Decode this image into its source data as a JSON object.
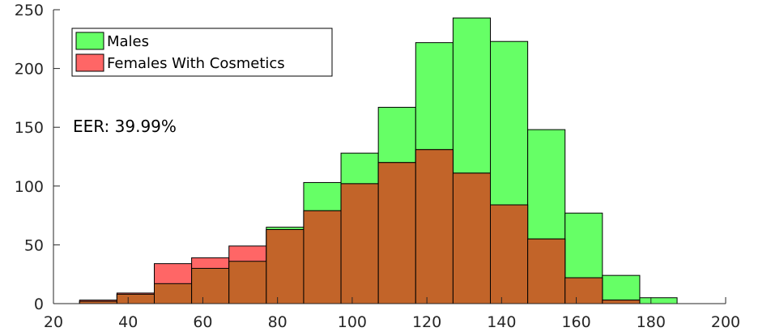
{
  "chart_data": {
    "type": "bar",
    "title": "",
    "xlabel": "",
    "ylabel": "",
    "xlim": [
      20,
      200
    ],
    "ylim": [
      0,
      250
    ],
    "x_ticks": [
      20,
      40,
      60,
      80,
      100,
      120,
      140,
      160,
      180,
      200
    ],
    "y_ticks": [
      0,
      50,
      100,
      150,
      200,
      250
    ],
    "grid": false,
    "legend_position": "top-left",
    "annotation": "EER: 39.99%",
    "bin_edges": [
      27,
      37,
      47,
      57,
      67,
      77,
      87,
      97,
      107,
      117,
      127,
      137,
      147,
      157,
      167,
      177,
      187
    ],
    "series": [
      {
        "name": "Males",
        "color": "#66ff66",
        "values": [
          2,
          8,
          17,
          30,
          36,
          65,
          103,
          128,
          167,
          222,
          243,
          223,
          148,
          77,
          24,
          5
        ]
      },
      {
        "name": "Females With Cosmetics",
        "color": "#ff6666",
        "values": [
          3,
          9,
          34,
          39,
          49,
          63,
          79,
          102,
          120,
          131,
          111,
          84,
          55,
          22,
          3,
          0
        ]
      }
    ],
    "overlap_color": "#c26429"
  }
}
